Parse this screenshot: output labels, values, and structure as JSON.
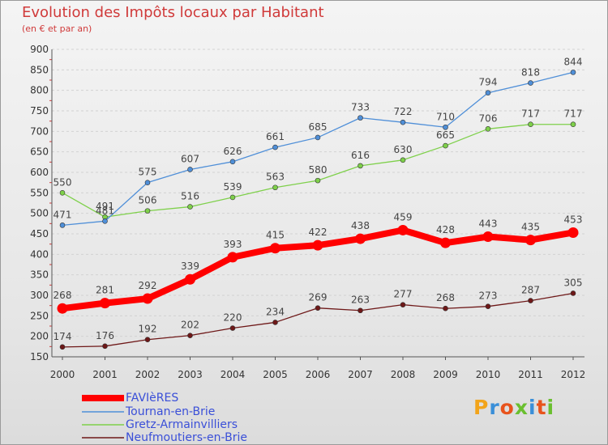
{
  "chart_data": {
    "type": "line",
    "title": "Evolution des Impôts locaux par Habitant",
    "subtitle": "(en € et par an)",
    "x": [
      "2000",
      "2001",
      "2002",
      "2003",
      "2004",
      "2005",
      "2006",
      "2007",
      "2008",
      "2009",
      "2010",
      "2011",
      "2012"
    ],
    "ylim": [
      150,
      900
    ],
    "yticks": [
      "150",
      "200",
      "250",
      "300",
      "350",
      "400",
      "450",
      "500",
      "550",
      "600",
      "650",
      "700",
      "750",
      "800",
      "850",
      "900"
    ],
    "grid": "horizontal",
    "legend_position": "bottom-left",
    "series": [
      {
        "name": "FAVIèRES",
        "color": "#ff0000",
        "values": [
          268,
          281,
          292,
          339,
          393,
          415,
          422,
          438,
          459,
          428,
          443,
          435,
          453
        ]
      },
      {
        "name": "Tournan-en-Brie",
        "color": "#4f8fd8",
        "values": [
          471,
          481,
          575,
          607,
          626,
          661,
          685,
          733,
          722,
          710,
          794,
          818,
          844
        ]
      },
      {
        "name": "Gretz-Armainvilliers",
        "color": "#7ed04a",
        "values": [
          550,
          491,
          506,
          516,
          539,
          563,
          580,
          616,
          630,
          665,
          706,
          717,
          717
        ]
      },
      {
        "name": "Neufmoutiers-en-Brie",
        "color": "#6e1818",
        "values": [
          174,
          176,
          192,
          202,
          220,
          234,
          269,
          263,
          277,
          268,
          273,
          287,
          305
        ]
      }
    ],
    "data_labels": [
      [
        "268",
        "281",
        "292",
        "339",
        "393",
        "415",
        "422",
        "438",
        "459",
        "428",
        "443",
        "435",
        "453"
      ],
      [
        "471",
        "481",
        "575",
        "607",
        "626",
        "661",
        "685",
        "733",
        "722",
        "710",
        "794",
        "818",
        "844"
      ],
      [
        "550",
        "491",
        "506",
        "516",
        "539",
        "563",
        "580",
        "616",
        "630",
        "665",
        "706",
        "717",
        "717"
      ],
      [
        "174",
        "176",
        "192",
        "202",
        "220",
        "234",
        "269",
        "263",
        "277",
        "268",
        "273",
        "287",
        "305"
      ]
    ]
  },
  "legend": [
    "FAVIèRES",
    "Tournan-en-Brie",
    "Gretz-Armainvilliers",
    "Neufmoutiers-en-Brie"
  ],
  "logo": {
    "text": "Proxiti"
  }
}
